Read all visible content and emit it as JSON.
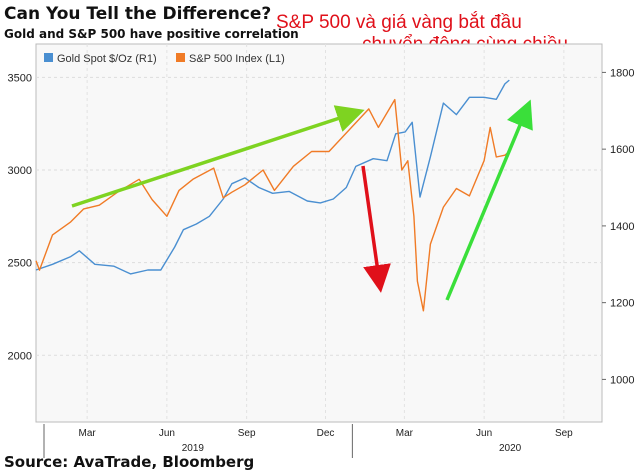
{
  "title": "Can You Tell the Difference?",
  "subtitle": "Gold and S&P 500 have positive correlation",
  "annotation_line1": "S&P 500 và giá vàng bắt đầu",
  "annotation_line2": "chuyển động cùng chiều",
  "source": "Source: AvaTrade, Bloomberg",
  "colors": {
    "gold": "#4a8fd1",
    "sp500": "#f07b26",
    "arrow_green": "#7ed321",
    "arrow_green_bright": "#3adf3a",
    "arrow_red": "#e0101a",
    "plot_bg": "#f8f8f8"
  },
  "chart_data": {
    "type": "line",
    "title": "Can You Tell the Difference?",
    "subtitle": "Gold and S&P 500 have positive correlation",
    "x_ticks": [
      "Mar",
      "Jun",
      "Sep",
      "Dec",
      "Mar",
      "Jun",
      "Sep"
    ],
    "x_tick_dates": [
      "2019-03-01",
      "2019-06-01",
      "2019-09-01",
      "2019-12-01",
      "2020-03-01",
      "2020-06-01",
      "2020-09-01"
    ],
    "year_labels": [
      "2019",
      "2020"
    ],
    "year_label_dates": [
      "2019-07-01",
      "2020-07-01"
    ],
    "xlim": [
      "2019-01-01",
      "2020-10-15"
    ],
    "y_left": {
      "ticks": [
        "2000",
        "2500",
        "3000",
        "3500"
      ],
      "tick_values": [
        2000,
        2500,
        3000,
        3500
      ],
      "range": [
        1640,
        3680
      ]
    },
    "y_right": {
      "ticks": [
        "1000",
        "1200",
        "1400",
        "1600",
        "1800"
      ],
      "tick_values": [
        1000,
        1200,
        1400,
        1600,
        1800
      ],
      "range": [
        889,
        1874
      ]
    },
    "grid": true,
    "legend_position": "top-left",
    "series": [
      {
        "name": "Gold Spot $/Oz (R1)",
        "axis": "right",
        "x": [
          "2019-01-01",
          "2019-01-20",
          "2019-02-10",
          "2019-02-20",
          "2019-03-10",
          "2019-04-01",
          "2019-04-20",
          "2019-05-10",
          "2019-05-25",
          "2019-06-10",
          "2019-06-20",
          "2019-07-05",
          "2019-07-20",
          "2019-08-05",
          "2019-08-15",
          "2019-08-30",
          "2019-09-15",
          "2019-10-01",
          "2019-10-20",
          "2019-11-10",
          "2019-11-25",
          "2019-12-10",
          "2019-12-25",
          "2020-01-05",
          "2020-01-25",
          "2020-02-10",
          "2020-02-20",
          "2020-03-02",
          "2020-03-10",
          "2020-03-19",
          "2020-03-31",
          "2020-04-15",
          "2020-04-30",
          "2020-05-15",
          "2020-06-01",
          "2020-06-15",
          "2020-06-25",
          "2020-06-30"
        ],
        "y": [
          1285,
          1300,
          1320,
          1335,
          1300,
          1295,
          1275,
          1285,
          1285,
          1345,
          1390,
          1405,
          1425,
          1470,
          1510,
          1525,
          1500,
          1485,
          1490,
          1465,
          1460,
          1470,
          1500,
          1555,
          1575,
          1570,
          1640,
          1645,
          1670,
          1475,
          1580,
          1720,
          1690,
          1735,
          1735,
          1730,
          1770,
          1780
        ]
      },
      {
        "name": "S&P 500 Index (L1)",
        "axis": "left",
        "x": [
          "2019-01-01",
          "2019-01-05",
          "2019-01-20",
          "2019-02-10",
          "2019-02-25",
          "2019-03-15",
          "2019-04-05",
          "2019-04-30",
          "2019-05-15",
          "2019-06-01",
          "2019-06-15",
          "2019-07-01",
          "2019-07-25",
          "2019-08-05",
          "2019-08-15",
          "2019-08-30",
          "2019-09-20",
          "2019-10-03",
          "2019-10-25",
          "2019-11-15",
          "2019-12-05",
          "2019-12-31",
          "2020-01-20",
          "2020-01-31",
          "2020-02-19",
          "2020-02-27",
          "2020-03-05",
          "2020-03-12",
          "2020-03-16",
          "2020-03-23",
          "2020-03-31",
          "2020-04-15",
          "2020-04-30",
          "2020-05-15",
          "2020-06-01",
          "2020-06-08",
          "2020-06-15",
          "2020-06-25",
          "2020-06-30"
        ],
        "y": [
          2510,
          2460,
          2650,
          2720,
          2790,
          2810,
          2880,
          2950,
          2840,
          2750,
          2890,
          2950,
          3010,
          2850,
          2880,
          2920,
          3000,
          2890,
          3020,
          3100,
          3100,
          3230,
          3330,
          3230,
          3380,
          3000,
          3050,
          2750,
          2400,
          2240,
          2600,
          2800,
          2900,
          2860,
          3050,
          3230,
          3070,
          3080,
          3100
        ]
      }
    ]
  }
}
